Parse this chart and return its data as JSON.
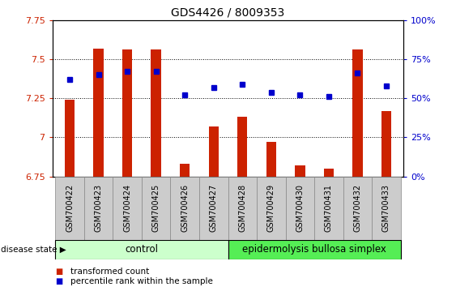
{
  "title": "GDS4426 / 8009353",
  "samples": [
    "GSM700422",
    "GSM700423",
    "GSM700424",
    "GSM700425",
    "GSM700426",
    "GSM700427",
    "GSM700428",
    "GSM700429",
    "GSM700430",
    "GSM700431",
    "GSM700432",
    "GSM700433"
  ],
  "bar_values": [
    7.24,
    7.57,
    7.56,
    7.56,
    6.83,
    7.07,
    7.13,
    6.97,
    6.82,
    6.8,
    7.56,
    7.17
  ],
  "dot_values": [
    7.37,
    7.4,
    7.42,
    7.42,
    7.27,
    7.32,
    7.34,
    7.29,
    7.27,
    7.26,
    7.41,
    7.33
  ],
  "bar_base": 6.75,
  "ylim_left": [
    6.75,
    7.75
  ],
  "ylim_right": [
    0,
    100
  ],
  "yticks_left": [
    6.75,
    7.0,
    7.25,
    7.5,
    7.75
  ],
  "yticks_right": [
    0,
    25,
    50,
    75,
    100
  ],
  "ytick_labels_left": [
    "6.75",
    "7",
    "7.25",
    "7.5",
    "7.75"
  ],
  "ytick_labels_right": [
    "0%",
    "25%",
    "50%",
    "75%",
    "100%"
  ],
  "bar_color": "#cc2200",
  "dot_color": "#0000cc",
  "plot_bg_color": "#ffffff",
  "control_samples": 6,
  "disease_samples": 6,
  "control_label": "control",
  "disease_label": "epidermolysis bullosa simplex",
  "control_bg": "#ccffcc",
  "disease_bg": "#55ee55",
  "sample_bg": "#cccccc",
  "legend_bar_label": "transformed count",
  "legend_dot_label": "percentile rank within the sample",
  "disease_state_label": "disease state"
}
